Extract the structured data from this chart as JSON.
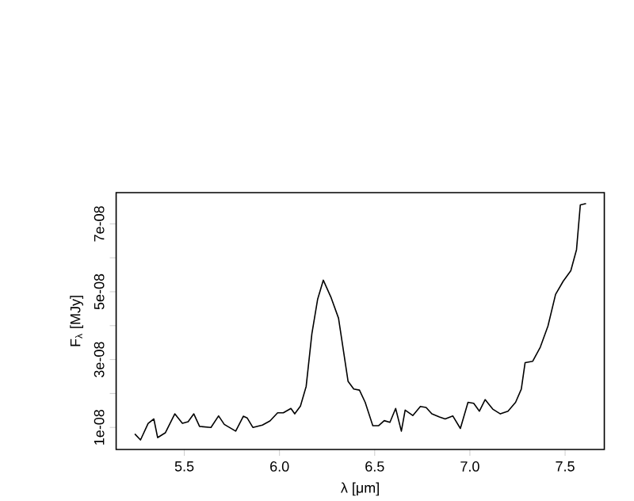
{
  "chart_data": {
    "type": "line",
    "xlabel": "λ [μm]",
    "ylabel": "F$_{λ}$ [MJy]",
    "xlim": [
      5.142,
      7.706
    ],
    "ylim": [
      3.5e-09,
      7.92e-08
    ],
    "xticks": [
      {
        "value": 5.5,
        "label": "5.5"
      },
      {
        "value": 6.0,
        "label": "6.0"
      },
      {
        "value": 6.5,
        "label": "6.5"
      },
      {
        "value": 7.0,
        "label": "7.0"
      },
      {
        "value": 7.5,
        "label": "7.5"
      }
    ],
    "yticks": [
      {
        "value": 1e-08,
        "label": "1e-08"
      },
      {
        "value": 2e-08,
        "label": null
      },
      {
        "value": 3e-08,
        "label": "3e-08"
      },
      {
        "value": 4e-08,
        "label": null
      },
      {
        "value": 5e-08,
        "label": "5e-08"
      },
      {
        "value": 6e-08,
        "label": null
      },
      {
        "value": 7e-08,
        "label": "7e-08"
      }
    ],
    "series": [
      {
        "color": "#000000",
        "x": [
          5.24,
          5.27,
          5.31,
          5.34,
          5.36,
          5.4,
          5.45,
          5.49,
          5.52,
          5.55,
          5.58,
          5.64,
          5.68,
          5.71,
          5.77,
          5.81,
          5.83,
          5.86,
          5.91,
          5.95,
          5.99,
          6.02,
          6.06,
          6.08,
          6.11,
          6.14,
          6.17,
          6.2,
          6.23,
          6.27,
          6.31,
          6.36,
          6.39,
          6.42,
          6.45,
          6.49,
          6.52,
          6.55,
          6.58,
          6.61,
          6.64,
          6.66,
          6.7,
          6.74,
          6.77,
          6.8,
          6.84,
          6.87,
          6.91,
          6.95,
          6.99,
          7.02,
          7.05,
          7.08,
          7.12,
          7.16,
          7.2,
          7.24,
          7.27,
          7.29,
          7.33,
          7.37,
          7.41,
          7.45,
          7.49,
          7.53,
          7.56,
          7.58,
          7.61
        ],
        "values": [
          8.1e-09,
          6.3e-09,
          1.12e-08,
          1.25e-08,
          7e-09,
          8.4e-09,
          1.4e-08,
          1.12e-08,
          1.17e-08,
          1.4e-08,
          1.03e-08,
          1e-08,
          1.34e-08,
          1.09e-08,
          8.9e-09,
          1.33e-08,
          1.28e-08,
          1e-08,
          1.07e-08,
          1.19e-08,
          1.43e-08,
          1.43e-08,
          1.56e-08,
          1.4e-08,
          1.63e-08,
          2.21e-08,
          3.76e-08,
          4.77e-08,
          5.34e-08,
          4.84e-08,
          4.22e-08,
          2.36e-08,
          2.13e-08,
          2.1e-08,
          1.74e-08,
          1.05e-08,
          1.05e-08,
          1.2e-08,
          1.15e-08,
          1.56e-08,
          8.9e-09,
          1.51e-08,
          1.35e-08,
          1.62e-08,
          1.59e-08,
          1.4e-08,
          1.31e-08,
          1.25e-08,
          1.34e-08,
          9.7e-09,
          1.74e-08,
          1.71e-08,
          1.48e-08,
          1.82e-08,
          1.54e-08,
          1.4e-08,
          1.48e-08,
          1.74e-08,
          2.13e-08,
          2.91e-08,
          2.95e-08,
          3.37e-08,
          3.99e-08,
          4.92e-08,
          5.31e-08,
          5.62e-08,
          6.24e-08,
          7.56e-08,
          7.6e-08
        ]
      }
    ]
  }
}
